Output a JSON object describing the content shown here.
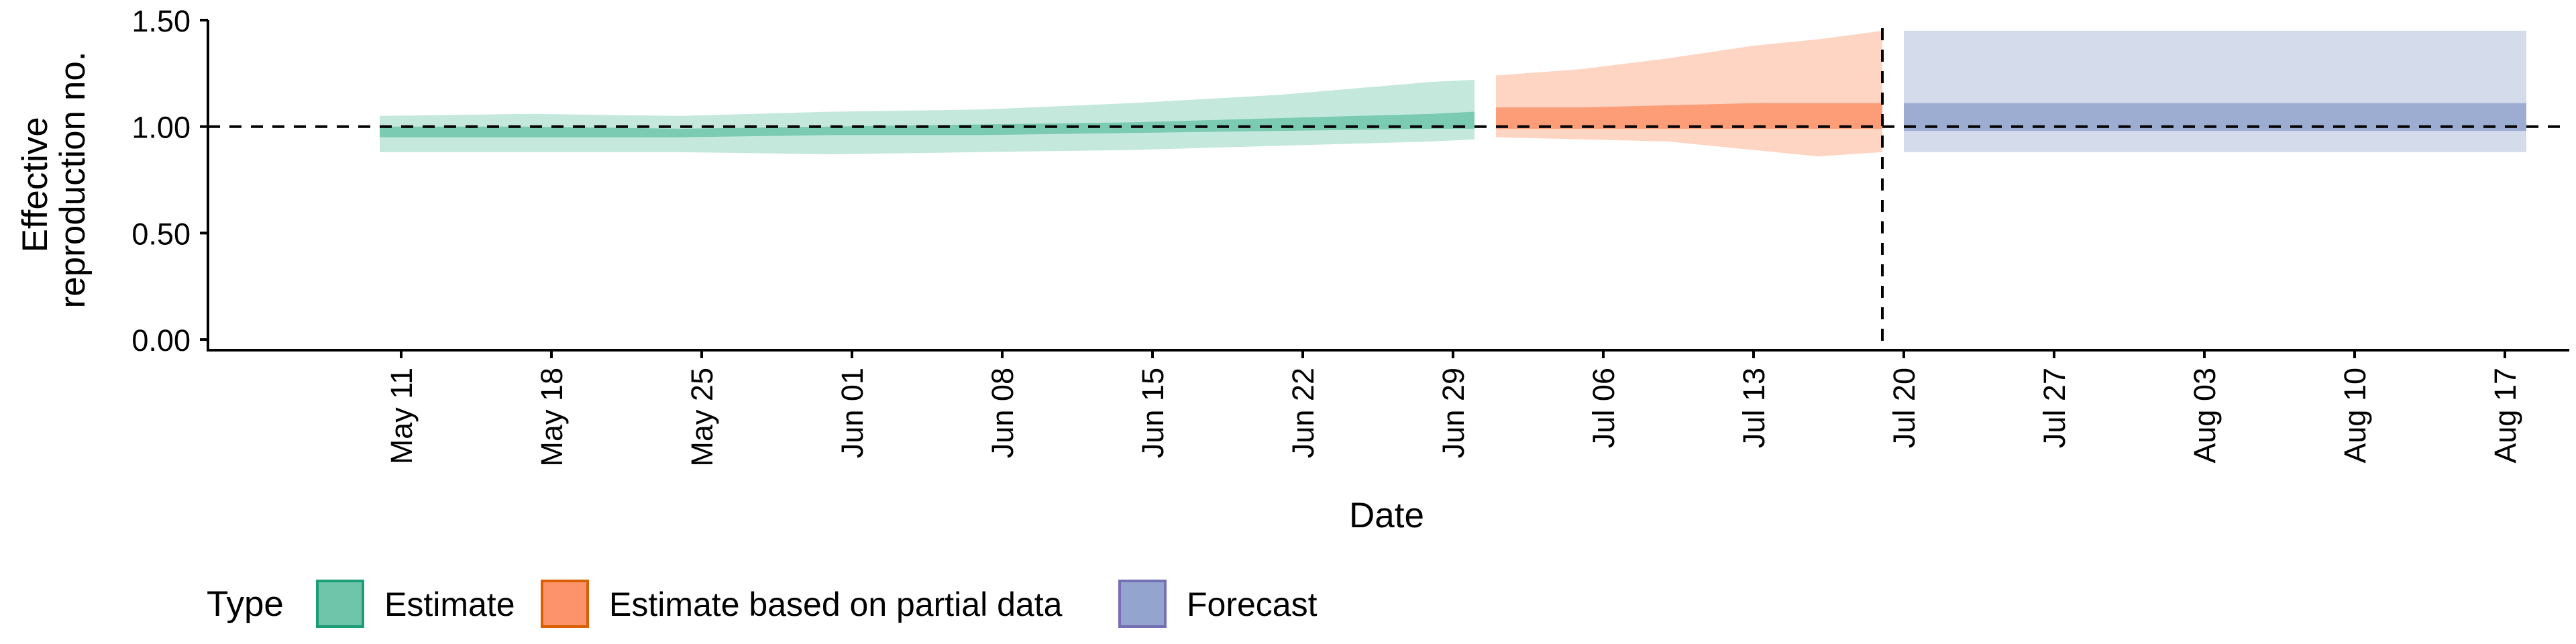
{
  "chart_data": {
    "type": "area",
    "xlabel": "Date",
    "ylabel_lines": [
      "Effective",
      "reproduction no."
    ],
    "x_range": [
      "2020-05-02",
      "2020-08-21"
    ],
    "ylim": [
      -0.05,
      1.5
    ],
    "y_ticks": [
      0.0,
      0.5,
      1.0,
      1.5
    ],
    "y_tick_labels": [
      "0.00",
      "0.50",
      "1.00",
      "1.50"
    ],
    "x_ticks": [
      "2020-05-11",
      "2020-05-18",
      "2020-05-25",
      "2020-06-01",
      "2020-06-08",
      "2020-06-15",
      "2020-06-22",
      "2020-06-29",
      "2020-07-06",
      "2020-07-13",
      "2020-07-20",
      "2020-07-27",
      "2020-08-03",
      "2020-08-10",
      "2020-08-17"
    ],
    "x_tick_labels": [
      "May 11",
      "May 18",
      "May 25",
      "Jun 01",
      "Jun 08",
      "Jun 15",
      "Jun 22",
      "Jun 29",
      "Jul 06",
      "Jul 13",
      "Jul 20",
      "Jul 27",
      "Aug 03",
      "Aug 10",
      "Aug 17"
    ],
    "reference_hline": 1.0,
    "reference_vline": "2020-07-19",
    "grid": false,
    "legend": {
      "title": "Type",
      "position": "bottom-left",
      "items": [
        {
          "label": "Estimate",
          "fill": "#66c2a5",
          "stroke": "#1b9e77"
        },
        {
          "label": "Estimate based on partial data",
          "fill": "#fc8d62",
          "stroke": "#d95f02"
        },
        {
          "label": "Forecast",
          "fill": "#8da0cb",
          "stroke": "#7570b3"
        }
      ]
    },
    "series": [
      {
        "name": "Estimate",
        "color": "#1b9e77",
        "points": [
          {
            "date": "2020-05-10",
            "lower_90": 0.88,
            "lower_50": 0.95,
            "upper_50": 1.0,
            "upper_90": 1.05
          },
          {
            "date": "2020-05-17",
            "lower_90": 0.88,
            "lower_50": 0.95,
            "upper_50": 1.0,
            "upper_90": 1.06
          },
          {
            "date": "2020-05-24",
            "lower_90": 0.88,
            "lower_50": 0.95,
            "upper_50": 0.99,
            "upper_90": 1.05
          },
          {
            "date": "2020-05-31",
            "lower_90": 0.87,
            "lower_50": 0.96,
            "upper_50": 1.0,
            "upper_90": 1.07
          },
          {
            "date": "2020-06-07",
            "lower_90": 0.88,
            "lower_50": 0.96,
            "upper_50": 1.01,
            "upper_90": 1.08
          },
          {
            "date": "2020-06-14",
            "lower_90": 0.89,
            "lower_50": 0.97,
            "upper_50": 1.02,
            "upper_90": 1.11
          },
          {
            "date": "2020-06-21",
            "lower_90": 0.91,
            "lower_50": 0.98,
            "upper_50": 1.04,
            "upper_90": 1.15
          },
          {
            "date": "2020-06-28",
            "lower_90": 0.93,
            "lower_50": 0.99,
            "upper_50": 1.06,
            "upper_90": 1.21
          },
          {
            "date": "2020-06-30",
            "lower_90": 0.94,
            "lower_50": 0.99,
            "upper_50": 1.07,
            "upper_90": 1.22
          }
        ]
      },
      {
        "name": "Estimate based on partial data",
        "color": "#d95f02",
        "points": [
          {
            "date": "2020-07-01",
            "lower_90": 0.95,
            "lower_50": 0.99,
            "upper_50": 1.09,
            "upper_90": 1.24
          },
          {
            "date": "2020-07-05",
            "lower_90": 0.94,
            "lower_50": 0.99,
            "upper_50": 1.09,
            "upper_90": 1.27
          },
          {
            "date": "2020-07-09",
            "lower_90": 0.93,
            "lower_50": 0.99,
            "upper_50": 1.1,
            "upper_90": 1.32
          },
          {
            "date": "2020-07-13",
            "lower_90": 0.89,
            "lower_50": 0.99,
            "upper_50": 1.11,
            "upper_90": 1.38
          },
          {
            "date": "2020-07-16",
            "lower_90": 0.86,
            "lower_50": 0.99,
            "upper_50": 1.11,
            "upper_90": 1.41
          },
          {
            "date": "2020-07-19",
            "lower_90": 0.88,
            "lower_50": 0.99,
            "upper_50": 1.11,
            "upper_90": 1.45
          }
        ]
      },
      {
        "name": "Forecast",
        "color": "#7570b3",
        "points": [
          {
            "date": "2020-07-20",
            "lower_90": 0.88,
            "lower_50": 0.98,
            "upper_50": 1.11,
            "upper_90": 1.45
          },
          {
            "date": "2020-08-18",
            "lower_90": 0.88,
            "lower_50": 0.98,
            "upper_50": 1.11,
            "upper_90": 1.45
          }
        ]
      }
    ]
  }
}
